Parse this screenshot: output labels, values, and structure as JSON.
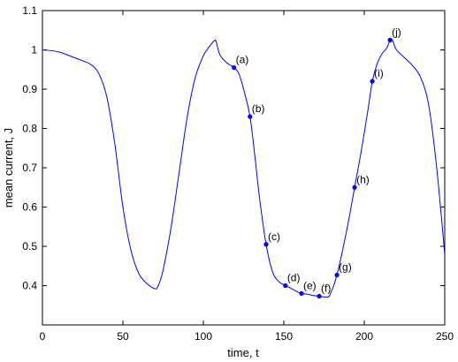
{
  "chart_data": {
    "type": "line",
    "title": "",
    "xlabel": "time, t",
    "ylabel": "mean current, J",
    "xlim": [
      0,
      250
    ],
    "ylim": [
      0.3,
      1.1
    ],
    "xticks": [
      0,
      50,
      100,
      150,
      200,
      250
    ],
    "yticks": [
      0.4,
      0.5,
      0.6,
      0.7,
      0.8,
      0.9,
      1.0,
      1.1
    ],
    "ytick_labels": [
      "0.4",
      "0.5",
      "0.6",
      "0.7",
      "0.8",
      "0.9",
      "1",
      "1.1"
    ],
    "grid": false,
    "line_color": "#0000ff",
    "series": [
      {
        "x": [
          0,
          10,
          20,
          25,
          30,
          35,
          40,
          45,
          50,
          55,
          60,
          65,
          70,
          72,
          75,
          80,
          85,
          90,
          95,
          100,
          104,
          107,
          108,
          110,
          113,
          116,
          119,
          122,
          125,
          129,
          132,
          135,
          139,
          143,
          147,
          151,
          155,
          158,
          161,
          165,
          168,
          172,
          176,
          178,
          179,
          181,
          183,
          186,
          190,
          194,
          198,
          202,
          205,
          208,
          211,
          214,
          216,
          217,
          218,
          220,
          225,
          230,
          235,
          240,
          245,
          250
        ],
        "y": [
          1.0,
          0.995,
          0.98,
          0.972,
          0.963,
          0.94,
          0.88,
          0.76,
          0.6,
          0.49,
          0.43,
          0.405,
          0.392,
          0.4,
          0.44,
          0.55,
          0.69,
          0.83,
          0.93,
          0.985,
          1.01,
          1.024,
          1.02,
          0.99,
          0.973,
          0.963,
          0.955,
          0.94,
          0.9,
          0.83,
          0.73,
          0.62,
          0.505,
          0.435,
          0.41,
          0.4,
          0.392,
          0.385,
          0.38,
          0.378,
          0.375,
          0.373,
          0.371,
          0.372,
          0.38,
          0.4,
          0.427,
          0.48,
          0.56,
          0.65,
          0.74,
          0.84,
          0.92,
          0.965,
          0.99,
          1.005,
          1.025,
          1.028,
          1.02,
          1.0,
          0.98,
          0.96,
          0.93,
          0.86,
          0.7,
          0.48
        ]
      }
    ],
    "points": [
      {
        "label": "(a)",
        "x": 119,
        "y": 0.955
      },
      {
        "label": "(b)",
        "x": 129,
        "y": 0.83
      },
      {
        "label": "(c)",
        "x": 139,
        "y": 0.505
      },
      {
        "label": "(d)",
        "x": 151,
        "y": 0.4
      },
      {
        "label": "(e)",
        "x": 161,
        "y": 0.38
      },
      {
        "label": "(f)",
        "x": 172,
        "y": 0.373
      },
      {
        "label": "(g)",
        "x": 183,
        "y": 0.427
      },
      {
        "label": "(h)",
        "x": 194,
        "y": 0.65
      },
      {
        "label": "(i)",
        "x": 205,
        "y": 0.92
      },
      {
        "label": "(j)",
        "x": 216,
        "y": 1.025
      }
    ]
  }
}
